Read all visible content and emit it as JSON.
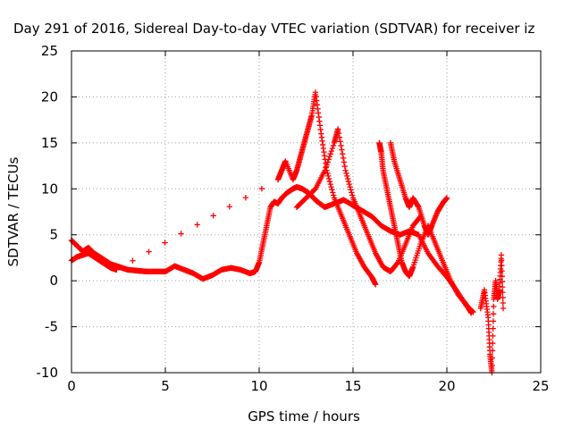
{
  "chart_data": {
    "type": "scatter",
    "title": "Day 291 of 2016, Sidereal Day-to-day VTEC variation (SDTVAR) for receiver iz",
    "xlabel": "GPS time / hours",
    "ylabel": "SDTVAR / TECUs",
    "xlim": [
      0,
      25
    ],
    "ylim": [
      -10,
      25
    ],
    "x_ticks": [
      "0",
      "5",
      "10",
      "15",
      "20",
      "25"
    ],
    "y_ticks": [
      "25",
      "20",
      "15",
      "10",
      "5",
      "0",
      "-5",
      "-10"
    ],
    "grid": true,
    "legend": "none",
    "marker": "+",
    "color": "#ff0000",
    "series": [
      {
        "x": [
          0,
          0.3,
          0.6,
          0.9,
          1.2,
          1.5,
          1.8,
          2.1,
          2.4,
          2.7,
          3.0,
          3.5,
          4.0,
          4.5,
          5.0,
          5.5,
          6.0,
          6.5,
          7.0,
          7.5,
          8.0,
          8.5,
          9.0,
          9.5,
          9.8,
          10.0,
          10.2,
          10.4,
          10.6,
          10.8,
          11.0,
          11.2,
          11.5,
          11.8,
          12.0,
          12.3,
          12.6,
          12.9,
          13.1,
          13.5,
          14.0,
          14.5,
          15.0,
          15.5,
          16.0,
          16.5,
          17.0,
          17.5,
          18.0,
          18.5,
          19.0,
          19.5,
          20.0,
          20.5,
          21.0,
          21.4
        ],
        "y": [
          4.4,
          3.8,
          3.2,
          3.6,
          3.0,
          2.6,
          2.2,
          1.8,
          1.6,
          1.4,
          1.2,
          1.1,
          1.0,
          1.0,
          1.0,
          1.6,
          1.2,
          0.8,
          0.2,
          0.6,
          1.2,
          1.4,
          1.2,
          0.8,
          1.0,
          2.0,
          4.0,
          6.0,
          8.0,
          8.6,
          8.4,
          9.0,
          9.6,
          10.0,
          10.2,
          10.0,
          9.6,
          9.0,
          8.6,
          8.0,
          8.4,
          8.8,
          8.2,
          7.6,
          7.0,
          6.0,
          5.4,
          5.0,
          5.4,
          5.0,
          3.0,
          1.6,
          0.4,
          -1.0,
          -2.6,
          -3.4
        ]
      },
      {
        "x": [
          0,
          0.3,
          0.6,
          0.9,
          1.2,
          1.5,
          1.8,
          2.1,
          2.4,
          11.0,
          11.2,
          11.4,
          11.8,
          12.0,
          12.2,
          12.4,
          12.6,
          12.8,
          13.0,
          13.3,
          13.6,
          14.0,
          14.4,
          14.8,
          15.2,
          15.6,
          16.0,
          16.2
        ],
        "y": [
          2.2,
          2.6,
          2.8,
          3.0,
          2.6,
          2.2,
          1.8,
          1.4,
          1.2,
          11.0,
          12.0,
          13.0,
          11.0,
          12.0,
          13.5,
          15.0,
          16.5,
          18.0,
          20.5,
          16.0,
          12.0,
          9.0,
          7.0,
          5.0,
          3.0,
          1.5,
          0.4,
          -0.4
        ]
      },
      {
        "x": [
          12.0,
          12.5,
          13.0,
          13.5,
          14.0,
          14.2,
          14.6,
          15.0,
          15.4,
          15.8,
          16.2,
          16.6,
          17.0,
          17.4,
          17.8,
          18.2,
          18.6
        ],
        "y": [
          8.0,
          9.0,
          10.0,
          12.0,
          15.0,
          16.5,
          12.0,
          9.0,
          7.0,
          5.0,
          3.0,
          1.5,
          1.0,
          2.0,
          4.0,
          6.0,
          7.0
        ]
      },
      {
        "x": [
          16.4,
          16.5,
          16.6,
          16.8,
          17.0,
          17.2,
          17.4,
          17.6,
          17.8,
          18.0,
          18.2,
          18.6,
          19.0,
          19.4,
          19.8,
          20.2,
          20.6,
          21.0,
          21.3
        ],
        "y": [
          15.0,
          14.0,
          12.0,
          10.0,
          8.0,
          6.0,
          4.0,
          2.0,
          1.0,
          0.5,
          1.5,
          4.0,
          6.0,
          4.0,
          2.0,
          0.0,
          -1.5,
          -2.5,
          -3.5
        ]
      },
      {
        "x": [
          17.0,
          17.2,
          17.5,
          17.8,
          18.0,
          18.2,
          18.5,
          18.8,
          19.0,
          19.2,
          19.5,
          19.8,
          20.0
        ],
        "y": [
          15.0,
          13.0,
          11.0,
          9.0,
          8.0,
          9.0,
          8.0,
          6.0,
          5.0,
          6.0,
          7.5,
          8.5,
          9.0
        ]
      },
      {
        "x": [
          21.8,
          22.0,
          22.2,
          22.3,
          22.4,
          22.5,
          22.6,
          22.7,
          22.8,
          22.9,
          23.0
        ],
        "y": [
          -3.0,
          -1.0,
          -4.0,
          -8.0,
          -10.0,
          -2.0,
          0.0,
          -2.0,
          -1.0,
          2.8,
          -3.0
        ]
      }
    ]
  }
}
